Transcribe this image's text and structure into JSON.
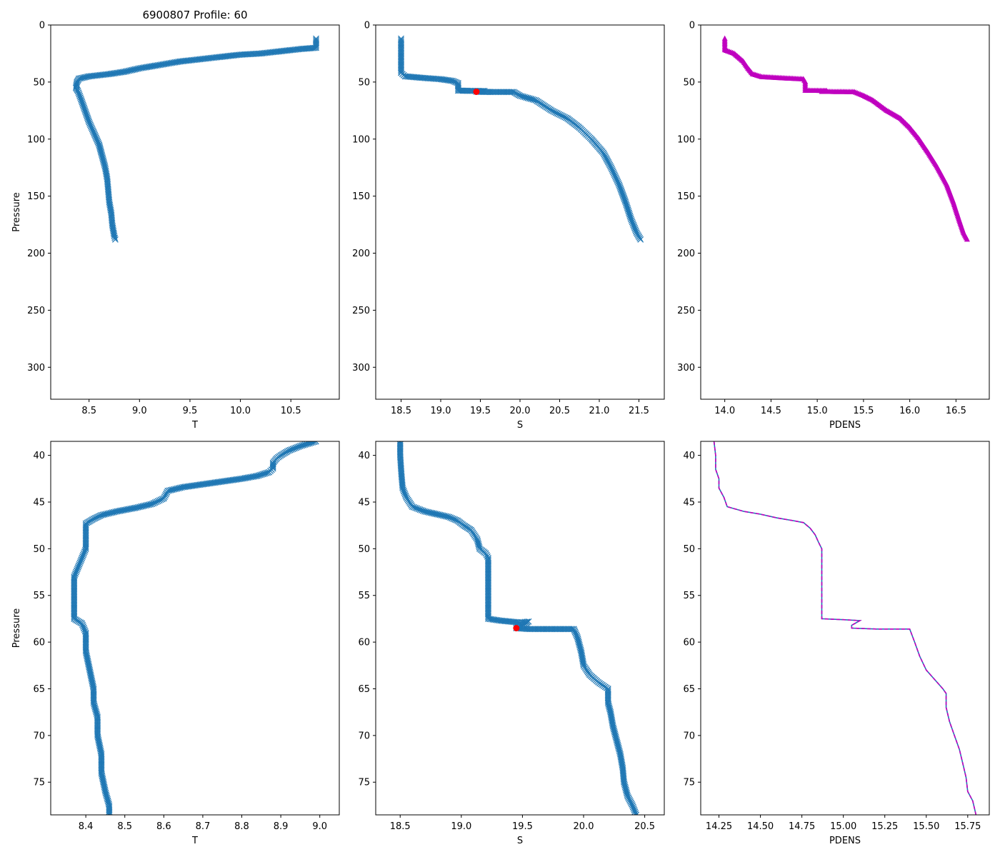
{
  "figure_title": "6900807 Profile: 60",
  "colors": {
    "series": "#1f77b4",
    "pdens_markers": "#bf00bf",
    "pdens_dash": "#bf00bf",
    "highlight": "#ff0000"
  },
  "chart_data": [
    {
      "id": "temperature-full",
      "type": "line",
      "marker": "x",
      "title": "6900807 Profile: 60",
      "xlabel": "T",
      "ylabel": "Pressure",
      "xlim": [
        8.12,
        10.98
      ],
      "ylim": [
        328,
        0
      ],
      "xticks": [
        8.5,
        9.0,
        9.5,
        10.0,
        10.5
      ],
      "xtick_labels": [
        "8.5",
        "9.0",
        "9.5",
        "10.0",
        "10.5"
      ],
      "yticks": [
        0,
        50,
        100,
        150,
        200,
        250,
        300
      ],
      "ytick_labels": [
        "0",
        "50",
        "100",
        "150",
        "200",
        "250",
        "300"
      ],
      "series": [
        {
          "name": "T",
          "points": [
            [
              10.75,
              12
            ],
            [
              10.75,
              20
            ],
            [
              10.6,
              21
            ],
            [
              10.4,
              23
            ],
            [
              10.2,
              25
            ],
            [
              10.0,
              26
            ],
            [
              9.8,
              28
            ],
            [
              9.6,
              30
            ],
            [
              9.4,
              32
            ],
            [
              9.2,
              35
            ],
            [
              9.0,
              38
            ],
            [
              8.85,
              41
            ],
            [
              8.7,
              43
            ],
            [
              8.5,
              45
            ],
            [
              8.4,
              47
            ],
            [
              8.38,
              50
            ],
            [
              8.37,
              55
            ],
            [
              8.39,
              58
            ],
            [
              8.42,
              65
            ],
            [
              8.46,
              75
            ],
            [
              8.5,
              85
            ],
            [
              8.55,
              95
            ],
            [
              8.6,
              105
            ],
            [
              8.63,
              115
            ],
            [
              8.66,
              125
            ],
            [
              8.68,
              135
            ],
            [
              8.69,
              145
            ],
            [
              8.7,
              155
            ],
            [
              8.72,
              165
            ],
            [
              8.73,
              175
            ],
            [
              8.75,
              185
            ],
            [
              8.76,
              188
            ]
          ]
        }
      ]
    },
    {
      "id": "salinity-full",
      "type": "line",
      "marker": "x",
      "xlabel": "S",
      "ylabel": "",
      "xlim": [
        18.18,
        21.82
      ],
      "ylim": [
        328,
        0
      ],
      "xticks": [
        18.5,
        19.0,
        19.5,
        20.0,
        20.5,
        21.0,
        21.5
      ],
      "xtick_labels": [
        "18.5",
        "19.0",
        "19.5",
        "20.0",
        "20.5",
        "21.0",
        "21.5"
      ],
      "yticks": [
        0,
        50,
        100,
        150,
        200,
        250,
        300
      ],
      "ytick_labels": [
        "0",
        "50",
        "100",
        "150",
        "200",
        "250",
        "300"
      ],
      "series": [
        {
          "name": "S",
          "points": [
            [
              18.5,
              12
            ],
            [
              18.5,
              42
            ],
            [
              18.55,
              45
            ],
            [
              18.8,
              46.5
            ],
            [
              19.0,
              47.5
            ],
            [
              19.15,
              49
            ],
            [
              19.22,
              51
            ],
            [
              19.22,
              57.5
            ],
            [
              19.35,
              57.7
            ],
            [
              19.55,
              57.8
            ],
            [
              19.45,
              58.5
            ],
            [
              19.64,
              58.7
            ],
            [
              19.92,
              58.7
            ],
            [
              20.0,
              62
            ],
            [
              20.2,
              66
            ],
            [
              20.4,
              75
            ],
            [
              20.6,
              82
            ],
            [
              20.75,
              90
            ],
            [
              20.9,
              100
            ],
            [
              21.05,
              112
            ],
            [
              21.15,
              125
            ],
            [
              21.25,
              140
            ],
            [
              21.33,
              155
            ],
            [
              21.4,
              170
            ],
            [
              21.47,
              182
            ],
            [
              21.52,
              188
            ]
          ]
        }
      ],
      "highlight_point": {
        "x": 19.45,
        "y": 58.5
      }
    },
    {
      "id": "pdens-full",
      "type": "line",
      "marker": "triangle",
      "xlabel": "PDENS",
      "ylabel": "",
      "xlim": [
        13.74,
        16.86
      ],
      "ylim": [
        328,
        0
      ],
      "xticks": [
        14.0,
        14.5,
        15.0,
        15.5,
        16.0,
        16.5
      ],
      "xtick_labels": [
        "14.0",
        "14.5",
        "15.0",
        "15.5",
        "16.0",
        "16.5"
      ],
      "yticks": [
        0,
        50,
        100,
        150,
        200,
        250,
        300
      ],
      "ytick_labels": [
        "0",
        "50",
        "100",
        "150",
        "200",
        "250",
        "300"
      ],
      "series": [
        {
          "name": "PDENS",
          "points": [
            [
              14.0,
              12
            ],
            [
              14.0,
              22
            ],
            [
              14.1,
              25
            ],
            [
              14.2,
              32
            ],
            [
              14.25,
              38
            ],
            [
              14.3,
              43
            ],
            [
              14.4,
              45.5
            ],
            [
              14.6,
              46.5
            ],
            [
              14.85,
              47.5
            ],
            [
              14.87,
              50
            ],
            [
              14.87,
              57.5
            ],
            [
              15.1,
              57.7
            ],
            [
              15.05,
              58.5
            ],
            [
              15.4,
              58.7
            ],
            [
              15.5,
              62
            ],
            [
              15.6,
              66
            ],
            [
              15.75,
              75
            ],
            [
              15.9,
              82
            ],
            [
              16.0,
              90
            ],
            [
              16.1,
              100
            ],
            [
              16.2,
              112
            ],
            [
              16.3,
              125
            ],
            [
              16.4,
              140
            ],
            [
              16.47,
              155
            ],
            [
              16.53,
              170
            ],
            [
              16.58,
              182
            ],
            [
              16.62,
              188
            ]
          ]
        }
      ]
    },
    {
      "id": "temperature-zoom",
      "type": "line",
      "marker": "x",
      "xlabel": "T",
      "ylabel": "Pressure",
      "xlim": [
        8.31,
        9.05
      ],
      "ylim": [
        78.5,
        38.5
      ],
      "xticks": [
        8.4,
        8.5,
        8.6,
        8.7,
        8.8,
        8.9,
        9.0
      ],
      "xtick_labels": [
        "8.4",
        "8.5",
        "8.6",
        "8.7",
        "8.8",
        "8.9",
        "9.0"
      ],
      "yticks": [
        40,
        45,
        50,
        55,
        60,
        65,
        70,
        75
      ],
      "ytick_labels": [
        "40",
        "45",
        "50",
        "55",
        "60",
        "65",
        "70",
        "75"
      ],
      "series": [
        {
          "name": "T",
          "points": [
            [
              8.99,
              38.5
            ],
            [
              8.95,
              39.0
            ],
            [
              8.92,
              39.5
            ],
            [
              8.9,
              40.0
            ],
            [
              8.89,
              40.3
            ],
            [
              8.88,
              40.8
            ],
            [
              8.88,
              41.4
            ],
            [
              8.87,
              41.8
            ],
            [
              8.84,
              42.2
            ],
            [
              8.8,
              42.5
            ],
            [
              8.75,
              42.8
            ],
            [
              8.7,
              43.1
            ],
            [
              8.65,
              43.4
            ],
            [
              8.61,
              43.8
            ],
            [
              8.6,
              44.6
            ],
            [
              8.57,
              45.2
            ],
            [
              8.53,
              45.6
            ],
            [
              8.48,
              46.0
            ],
            [
              8.44,
              46.4
            ],
            [
              8.42,
              46.8
            ],
            [
              8.4,
              47.3
            ],
            [
              8.4,
              49.0
            ],
            [
              8.4,
              50.0
            ],
            [
              8.39,
              51.0
            ],
            [
              8.38,
              52.0
            ],
            [
              8.37,
              53.0
            ],
            [
              8.37,
              55.0
            ],
            [
              8.37,
              57.5
            ],
            [
              8.39,
              58.0
            ],
            [
              8.4,
              59.0
            ],
            [
              8.4,
              61.0
            ],
            [
              8.41,
              63.0
            ],
            [
              8.42,
              65.0
            ],
            [
              8.42,
              66.5
            ],
            [
              8.43,
              68.0
            ],
            [
              8.43,
              70.0
            ],
            [
              8.44,
              72.0
            ],
            [
              8.44,
              74.0
            ],
            [
              8.45,
              76.0
            ],
            [
              8.46,
              77.5
            ],
            [
              8.46,
              78.5
            ]
          ]
        }
      ]
    },
    {
      "id": "salinity-zoom",
      "type": "line",
      "marker": "x",
      "xlabel": "S",
      "ylabel": "",
      "xlim": [
        18.3,
        20.66
      ],
      "ylim": [
        78.5,
        38.5
      ],
      "xticks": [
        18.5,
        19.0,
        19.5,
        20.0,
        20.5
      ],
      "xtick_labels": [
        "18.5",
        "19.0",
        "19.5",
        "20.0",
        "20.5"
      ],
      "yticks": [
        40,
        45,
        50,
        55,
        60,
        65,
        70,
        75
      ],
      "ytick_labels": [
        "40",
        "45",
        "50",
        "55",
        "60",
        "65",
        "70",
        "75"
      ],
      "series": [
        {
          "name": "S",
          "points": [
            [
              18.5,
              38.5
            ],
            [
              18.5,
              40.0
            ],
            [
              18.51,
              42.0
            ],
            [
              18.52,
              43.5
            ],
            [
              18.55,
              44.5
            ],
            [
              18.6,
              45.5
            ],
            [
              18.7,
              46.0
            ],
            [
              18.8,
              46.3
            ],
            [
              18.9,
              46.6
            ],
            [
              18.97,
              47.0
            ],
            [
              19.02,
              47.5
            ],
            [
              19.08,
              48.0
            ],
            [
              19.13,
              49.0
            ],
            [
              19.15,
              50.0
            ],
            [
              19.2,
              50.5
            ],
            [
              19.22,
              51.0
            ],
            [
              19.22,
              53.0
            ],
            [
              19.22,
              55.0
            ],
            [
              19.22,
              57.0
            ],
            [
              19.22,
              57.5
            ],
            [
              19.32,
              57.7
            ],
            [
              19.48,
              57.9
            ],
            [
              19.55,
              57.8
            ],
            [
              19.5,
              58.2
            ],
            [
              19.45,
              58.5
            ],
            [
              19.55,
              58.6
            ],
            [
              19.64,
              58.6
            ],
            [
              19.92,
              58.6
            ],
            [
              19.95,
              59.5
            ],
            [
              19.98,
              61.0
            ],
            [
              20.0,
              62.5
            ],
            [
              20.05,
              63.5
            ],
            [
              20.12,
              64.3
            ],
            [
              20.2,
              65.0
            ],
            [
              20.2,
              66.5
            ],
            [
              20.22,
              67.5
            ],
            [
              20.24,
              69.0
            ],
            [
              20.27,
              70.5
            ],
            [
              20.3,
              72.0
            ],
            [
              20.32,
              73.5
            ],
            [
              20.33,
              75.0
            ],
            [
              20.36,
              76.5
            ],
            [
              20.4,
              77.5
            ],
            [
              20.43,
              78.5
            ]
          ]
        }
      ],
      "highlight_point": {
        "x": 19.45,
        "y": 58.5
      }
    },
    {
      "id": "pdens-zoom",
      "type": "line",
      "marker": "none",
      "line_style": "solid with dashed overlay",
      "xlabel": "PDENS",
      "ylabel": "",
      "xlim": [
        14.14,
        15.88
      ],
      "ylim": [
        78.5,
        38.5
      ],
      "xticks": [
        14.25,
        14.5,
        14.75,
        15.0,
        15.25,
        15.5,
        15.75
      ],
      "xtick_labels": [
        "14.25",
        "14.50",
        "14.75",
        "15.00",
        "15.25",
        "15.50",
        "15.75"
      ],
      "yticks": [
        40,
        45,
        50,
        55,
        60,
        65,
        70,
        75
      ],
      "ytick_labels": [
        "40",
        "45",
        "50",
        "55",
        "60",
        "65",
        "70",
        "75"
      ],
      "series": [
        {
          "name": "PDENS",
          "points": [
            [
              14.22,
              38.5
            ],
            [
              14.23,
              40.0
            ],
            [
              14.23,
              41.5
            ],
            [
              14.25,
              42.5
            ],
            [
              14.25,
              43.5
            ],
            [
              14.28,
              44.5
            ],
            [
              14.3,
              45.5
            ],
            [
              14.4,
              46.0
            ],
            [
              14.5,
              46.3
            ],
            [
              14.6,
              46.7
            ],
            [
              14.7,
              47.0
            ],
            [
              14.76,
              47.2
            ],
            [
              14.8,
              47.8
            ],
            [
              14.83,
              48.5
            ],
            [
              14.85,
              49.3
            ],
            [
              14.87,
              50.0
            ],
            [
              14.87,
              53.0
            ],
            [
              14.87,
              55.0
            ],
            [
              14.87,
              57.5
            ],
            [
              15.0,
              57.6
            ],
            [
              15.1,
              57.7
            ],
            [
              15.05,
              58.2
            ],
            [
              15.05,
              58.5
            ],
            [
              15.2,
              58.6
            ],
            [
              15.4,
              58.6
            ],
            [
              15.43,
              60.0
            ],
            [
              15.46,
              61.5
            ],
            [
              15.5,
              63.0
            ],
            [
              15.55,
              64.0
            ],
            [
              15.6,
              65.0
            ],
            [
              15.62,
              65.5
            ],
            [
              15.62,
              67.0
            ],
            [
              15.64,
              68.5
            ],
            [
              15.67,
              70.0
            ],
            [
              15.7,
              71.5
            ],
            [
              15.72,
              73.0
            ],
            [
              15.74,
              74.5
            ],
            [
              15.75,
              76.0
            ],
            [
              15.78,
              77.0
            ],
            [
              15.8,
              78.5
            ]
          ]
        }
      ]
    }
  ]
}
